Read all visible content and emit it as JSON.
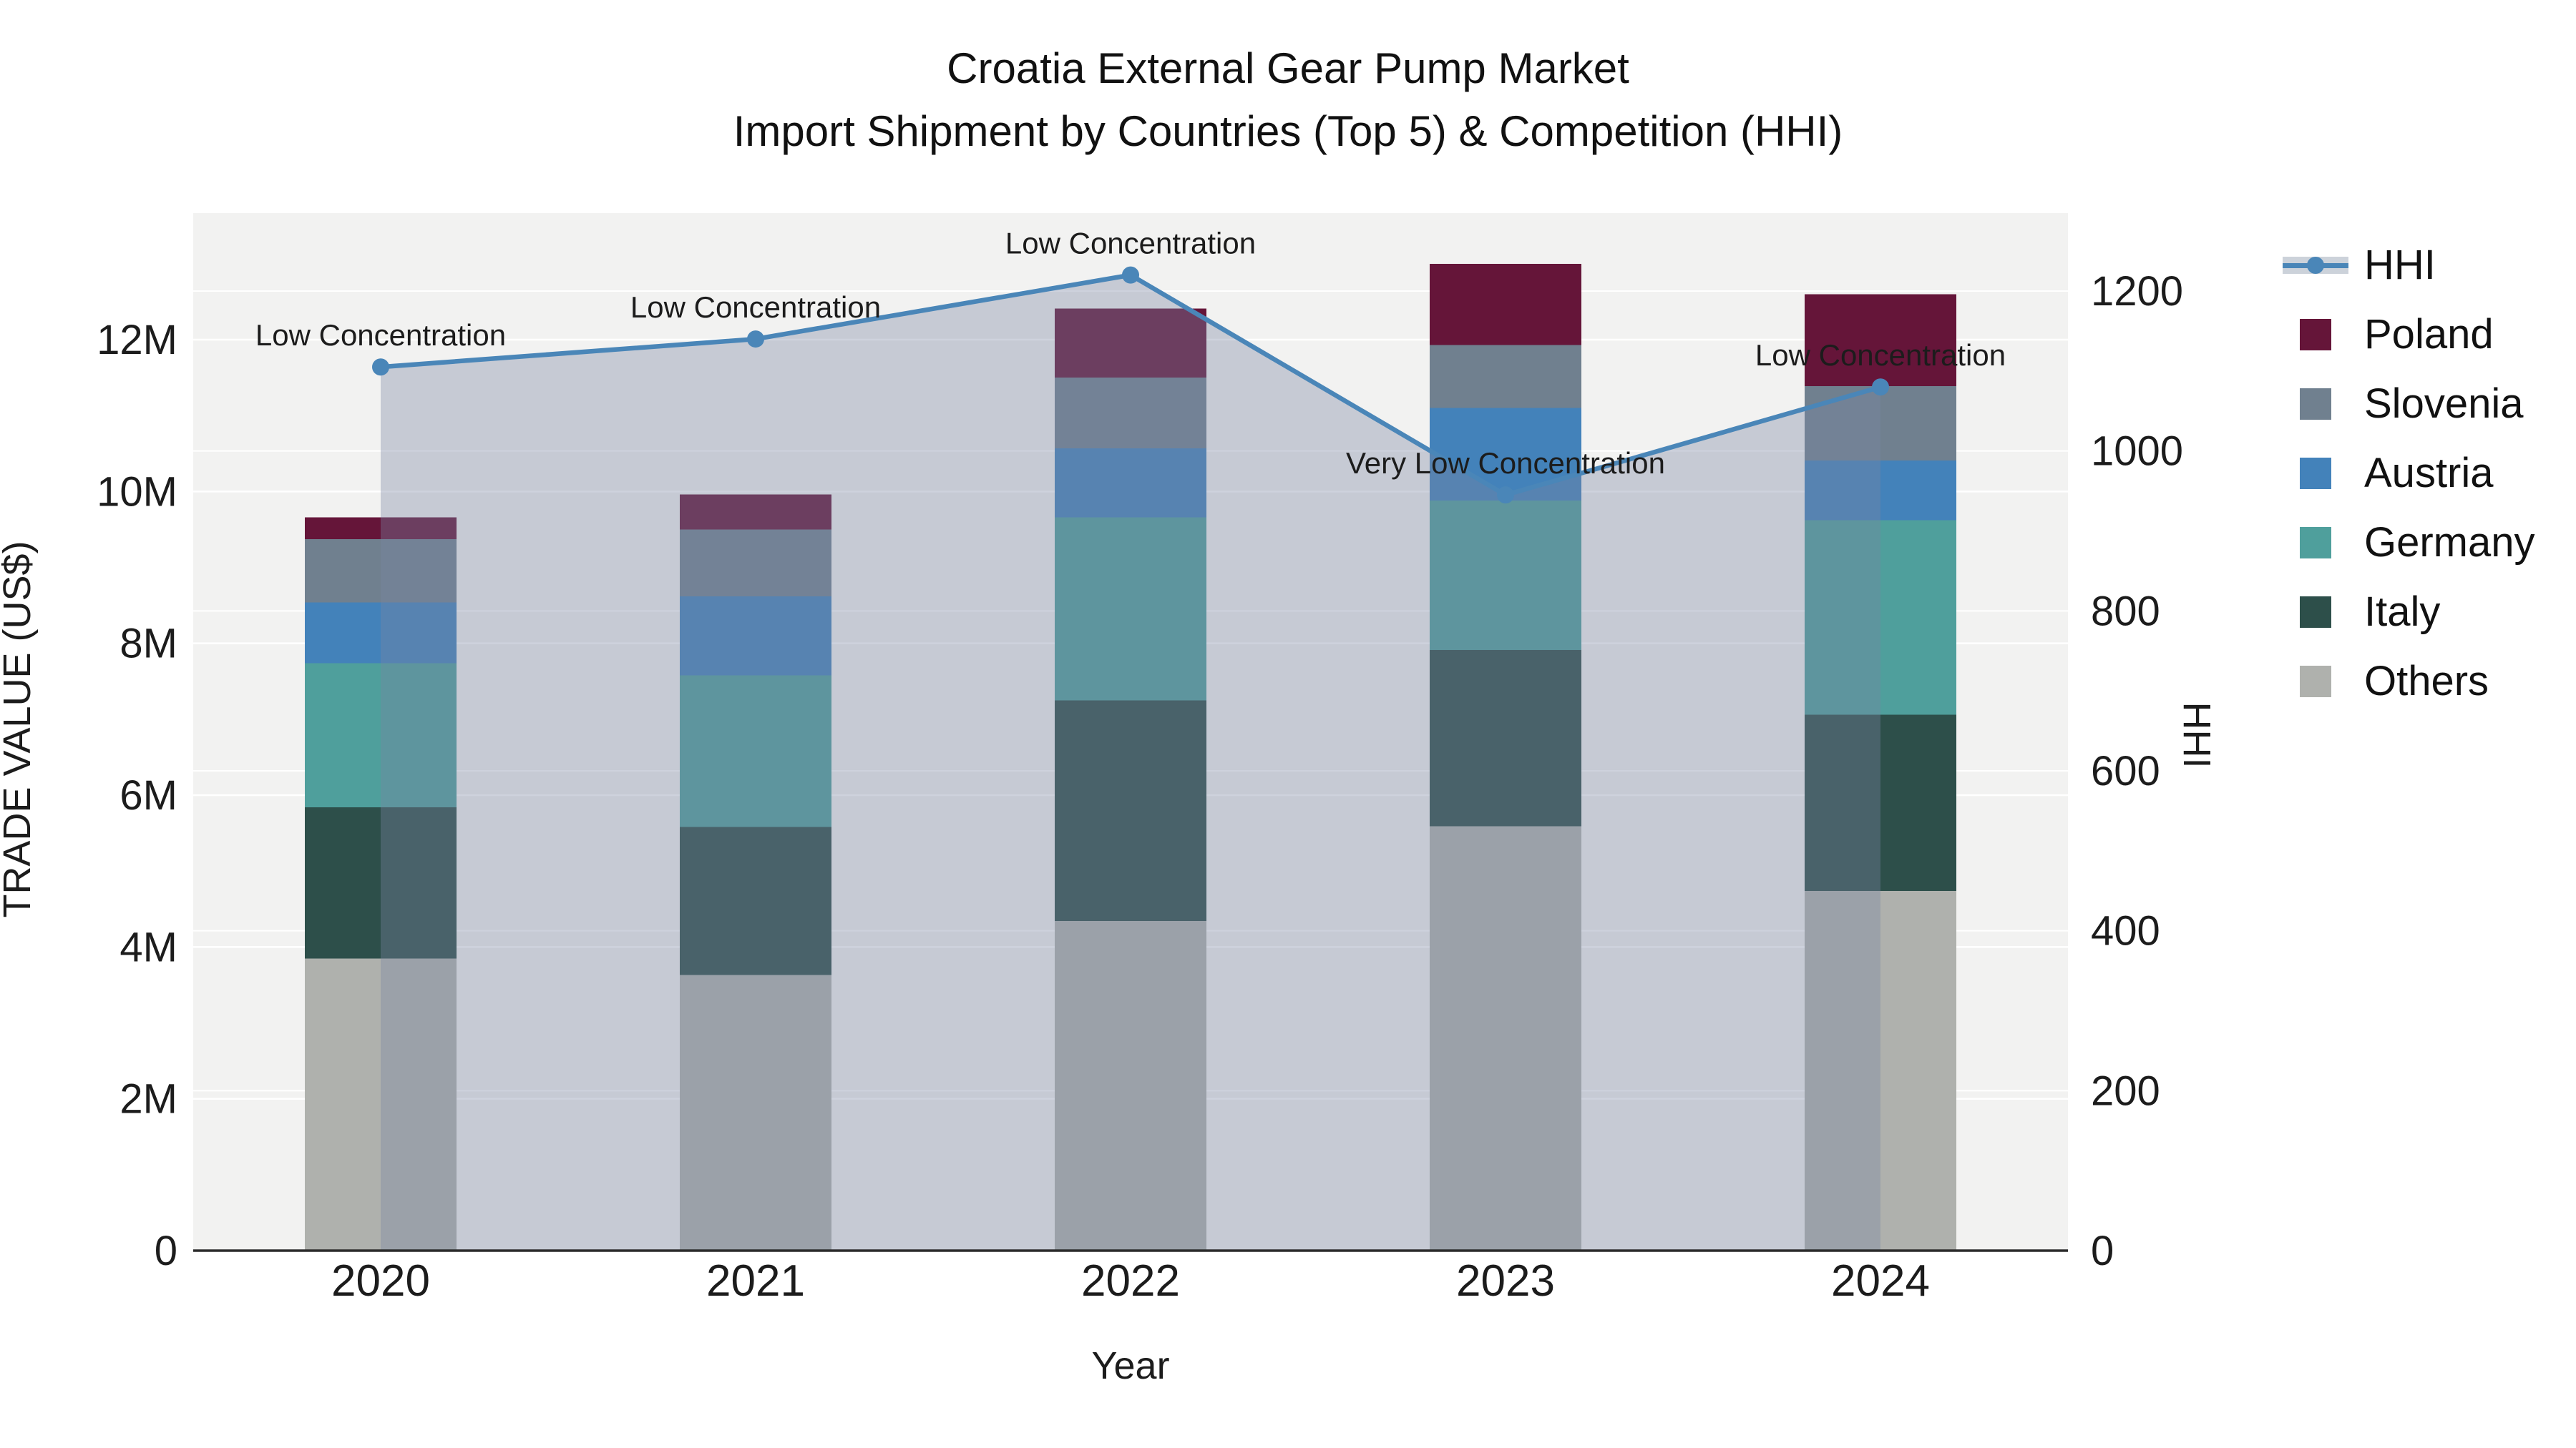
{
  "title": {
    "line1": "Croatia External Gear Pump Market",
    "line2": "Import Shipment by Countries (Top 5) & Competition (HHI)"
  },
  "axes": {
    "y_left": {
      "title": "TRADE VALUE (US$)",
      "ticks": [
        "0",
        "2M",
        "4M",
        "6M",
        "8M",
        "10M",
        "12M"
      ]
    },
    "y_right": {
      "title": "HHI",
      "ticks": [
        "0",
        "200",
        "400",
        "600",
        "800",
        "1000",
        "1200"
      ]
    },
    "x": {
      "title": "Year"
    }
  },
  "legend": {
    "items": [
      {
        "label": "HHI",
        "type": "line",
        "color": "#4A86B8"
      },
      {
        "label": "Poland",
        "type": "swatch",
        "color": "#651539"
      },
      {
        "label": "Slovenia",
        "type": "swatch",
        "color": "#70808F"
      },
      {
        "label": "Austria",
        "type": "swatch",
        "color": "#4382BA"
      },
      {
        "label": "Germany",
        "type": "swatch",
        "color": "#4F9F9C"
      },
      {
        "label": "Italy",
        "type": "swatch",
        "color": "#2D4F4A"
      },
      {
        "label": "Others",
        "type": "swatch",
        "color": "#AFB1AD"
      }
    ]
  },
  "chart_data": {
    "type": "bar+line",
    "title": "Croatia External Gear Pump Market — Import Shipment by Countries (Top 5) & Competition (HHI)",
    "categories": [
      "2020",
      "2021",
      "2022",
      "2023",
      "2024"
    ],
    "xlabel": "Year",
    "ylabel_left": "TRADE VALUE (US$)",
    "ylabel_right": "HHI",
    "ylim_left_millions": [
      0,
      13.66
    ],
    "ylim_right": [
      0,
      1300
    ],
    "grid": true,
    "legend_position": "right",
    "stack_order_bottom_to_top": [
      "Others",
      "Italy",
      "Germany",
      "Austria",
      "Slovenia",
      "Poland"
    ],
    "series": [
      {
        "name": "Poland",
        "color": "#651539",
        "values_millions": [
          0.29,
          0.46,
          0.91,
          1.07,
          1.21
        ]
      },
      {
        "name": "Slovenia",
        "color": "#70808F",
        "values_millions": [
          0.83,
          0.88,
          0.93,
          0.83,
          0.98
        ]
      },
      {
        "name": "Austria",
        "color": "#4382BA",
        "values_millions": [
          0.8,
          1.04,
          0.91,
          1.22,
          0.79
        ]
      },
      {
        "name": "Germany",
        "color": "#4F9F9C",
        "values_millions": [
          1.9,
          2.0,
          2.41,
          1.97,
          2.56
        ]
      },
      {
        "name": "Italy",
        "color": "#2D4F4A",
        "values_millions": [
          1.99,
          1.95,
          2.91,
          2.32,
          2.32
        ]
      },
      {
        "name": "Others",
        "color": "#AFB1AD",
        "values_millions": [
          3.85,
          3.63,
          4.34,
          5.59,
          4.74
        ]
      }
    ],
    "stack_totals_millions": [
      9.66,
      9.96,
      12.41,
      13.0,
      12.6
    ],
    "hhi": {
      "name": "HHI",
      "line_color": "#4A86B8",
      "area_fill": "rgba(122,134,163,0.37)",
      "values": [
        1105,
        1140,
        1220,
        945,
        1080
      ]
    },
    "annotations": [
      "Low Concentration",
      "Low Concentration",
      "Low Concentration",
      "Very Low Concentration",
      "Low Concentration"
    ],
    "colors": {
      "plot_background": "#F2F2F1",
      "gridline": "#FFFFFF",
      "axis_line": "#2B2B2B"
    }
  }
}
